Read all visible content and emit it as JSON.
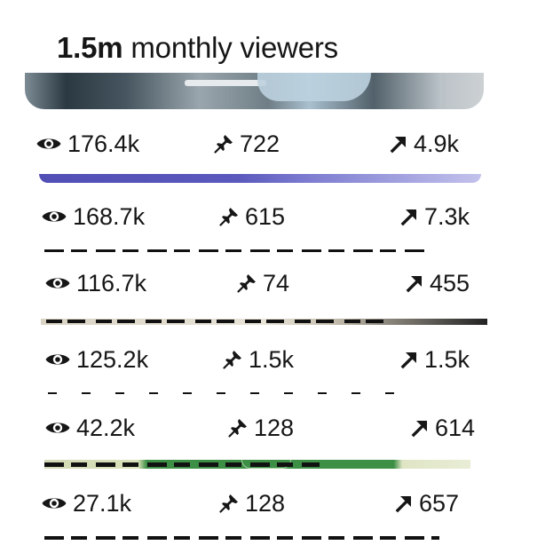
{
  "header": {
    "views_value": "1.5m",
    "views_label": "monthly viewers"
  },
  "pins": [
    {
      "views": "176.4k",
      "saves": "722",
      "outbound": "4.9k"
    },
    {
      "views": "168.7k",
      "saves": "615",
      "outbound": "7.3k"
    },
    {
      "views": "116.7k",
      "saves": "74",
      "outbound": "455"
    },
    {
      "views": "125.2k",
      "saves": "1.5k",
      "outbound": "1.5k"
    },
    {
      "views": "42.2k",
      "saves": "128",
      "outbound": "614"
    },
    {
      "views": "27.1k",
      "saves": "128",
      "outbound": "657"
    }
  ],
  "icons": {
    "views": "eye-icon",
    "saves": "pin-icon",
    "outbound": "arrow-up-right-icon"
  },
  "colors": {
    "text": "#161616",
    "background": "#ffffff",
    "pin_strip_purple": "#5b59bc",
    "pin_strip_green": "#3d8f45"
  }
}
